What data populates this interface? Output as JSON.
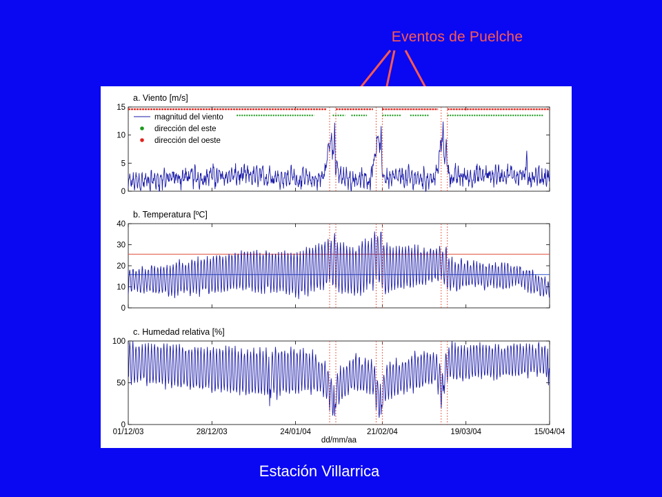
{
  "slide": {
    "annotation_title": "Eventos de Puelche",
    "station_title": "Estación Villarrica"
  },
  "colors": {
    "background": "#0A08F2",
    "annotation": "#FF5A4E",
    "series": "#1A1AA8",
    "east": "#1E9A1E",
    "west": "#E0251E",
    "event_line": "#E8513C",
    "temp_high": "#E04A3A",
    "temp_low": "#2A55C8"
  },
  "chart_data": {
    "type": "line",
    "x_type": "date",
    "x_range": [
      "2003-12-01",
      "2004-04-15"
    ],
    "x_ticks": [
      {
        "date": "2003-12-01",
        "label": "01/12/03"
      },
      {
        "date": "2003-12-28",
        "label": "28/12/03"
      },
      {
        "date": "2004-01-24",
        "label": "24/01/04"
      },
      {
        "date": "2004-02-21",
        "label": "21/02/04"
      },
      {
        "date": "2004-03-19",
        "label": "19/03/04"
      },
      {
        "date": "2004-04-15",
        "label": "15/04/04"
      }
    ],
    "xlabel": "dd/mm/aa",
    "puelche_events": [
      {
        "start": "2004-02-04",
        "end": "2004-02-06"
      },
      {
        "start": "2004-02-19",
        "end": "2004-02-21"
      },
      {
        "start": "2004-03-11",
        "end": "2004-03-13"
      }
    ],
    "panels": [
      {
        "id": "viento",
        "title": "a. Viento [m/s]",
        "ylim": [
          0,
          15
        ],
        "yticks": [
          0,
          5,
          10,
          15
        ],
        "legend": [
          "magnitud del viento",
          "dirección del este",
          "dirección del oeste"
        ],
        "series": [
          {
            "name": "magnitud del viento",
            "base": 1.6,
            "amp": 0.9,
            "noise": 1.6,
            "noise_scale": 0.08,
            "points": [
              [
                "2003-12-01",
                1.5
              ],
              [
                "2003-12-10",
                2.0
              ],
              [
                "2003-12-20",
                2.5
              ],
              [
                "2004-01-05",
                2.7
              ],
              [
                "2004-01-20",
                2.5
              ],
              [
                "2004-01-31",
                2.0
              ],
              [
                "2004-02-02",
                2.5
              ],
              [
                "2004-02-03",
                5.0
              ],
              [
                "2004-02-04",
                9.0
              ],
              [
                "2004-02-05",
                8.0
              ],
              [
                "2004-02-06",
                4.0
              ],
              [
                "2004-02-08",
                2.2
              ],
              [
                "2004-02-17",
                2.0
              ],
              [
                "2004-02-18",
                5.0
              ],
              [
                "2004-02-19",
                8.0
              ],
              [
                "2004-02-20",
                9.0
              ],
              [
                "2004-02-21",
                3.0
              ],
              [
                "2004-02-23",
                2.3
              ],
              [
                "2004-03-09",
                2.3
              ],
              [
                "2004-03-10",
                4.0
              ],
              [
                "2004-03-11",
                9.0
              ],
              [
                "2004-03-12",
                7.0
              ],
              [
                "2004-03-14",
                2.5
              ],
              [
                "2004-04-05",
                3.0
              ],
              [
                "2004-04-10",
                2.5
              ],
              [
                "2004-04-15",
                2.5
              ]
            ],
            "peaks": [
              [
                "2004-02-05",
                12.2
              ],
              [
                "2004-02-04",
                10.4
              ],
              [
                "2004-02-20",
                11.6
              ],
              [
                "2004-02-19",
                9.8
              ],
              [
                "2004-03-11",
                12.4
              ],
              [
                "2004-03-12",
                9.3
              ],
              [
                "2004-04-07",
                7.2
              ],
              [
                "2003-12-12",
                4.2
              ],
              [
                "2004-01-15",
                4.6
              ],
              [
                "2004-01-22",
                4.7
              ],
              [
                "2003-12-27",
                4.2
              ],
              [
                "2004-03-28",
                4.7
              ]
            ]
          }
        ],
        "direction_markers": {
          "east_y": 13.5,
          "west_y": 14.6,
          "west_segments": [
            [
              "2003-12-01",
              "2004-02-03"
            ],
            [
              "2004-02-06",
              "2004-02-18"
            ],
            [
              "2004-02-21",
              "2004-03-10"
            ],
            [
              "2004-03-13",
              "2004-04-15"
            ]
          ],
          "east_segments": [
            [
              "2003-12-06",
              "2003-12-09"
            ],
            [
              "2003-12-11",
              "2003-12-16"
            ],
            [
              "2003-12-17",
              "2003-12-19"
            ],
            [
              "2003-12-21",
              "2004-01-03"
            ],
            [
              "2004-01-05",
              "2004-01-30"
            ],
            [
              "2004-02-05",
              "2004-02-09"
            ],
            [
              "2004-02-11",
              "2004-02-16"
            ],
            [
              "2004-02-21",
              "2004-02-27"
            ],
            [
              "2004-03-01",
              "2004-03-07"
            ],
            [
              "2004-03-13",
              "2004-04-13"
            ]
          ]
        }
      },
      {
        "id": "temperatura",
        "title": "b. Temperatura [ºC]",
        "ylim": [
          0,
          40
        ],
        "yticks": [
          0,
          10,
          20,
          30,
          40
        ],
        "reference_lines": [
          {
            "y": 25.5,
            "color_key": "temp_high"
          },
          {
            "y": 15.8,
            "color_key": "temp_low"
          }
        ],
        "series": [
          {
            "name": "Temperatura",
            "base": 16,
            "amp": 8,
            "noise": 2.2,
            "noise_scale": 0.15,
            "points": [
              [
                "2003-12-01",
                13
              ],
              [
                "2003-12-15",
                13
              ],
              [
                "2003-12-25",
                15
              ],
              [
                "2004-01-10",
                18
              ],
              [
                "2004-01-25",
                16
              ],
              [
                "2004-02-04",
                22
              ],
              [
                "2004-02-06",
                20
              ],
              [
                "2004-02-12",
                17
              ],
              [
                "2004-02-20",
                24
              ],
              [
                "2004-02-22",
                18
              ],
              [
                "2004-03-11",
                21
              ],
              [
                "2004-03-14",
                16
              ],
              [
                "2004-04-05",
                15
              ],
              [
                "2004-04-14",
                10
              ],
              [
                "2004-04-15",
                8
              ]
            ],
            "amps": [
              [
                "2003-12-01",
                5
              ],
              [
                "2003-12-15",
                7
              ],
              [
                "2004-01-05",
                9
              ],
              [
                "2004-01-25",
                10
              ],
              [
                "2004-02-05",
                11
              ],
              [
                "2004-02-20",
                12
              ],
              [
                "2004-03-05",
                8
              ],
              [
                "2004-03-25",
                6
              ],
              [
                "2004-04-15",
                4
              ]
            ],
            "peaks": [
              [
                "2004-02-05",
                35.5
              ],
              [
                "2004-02-20",
                36
              ],
              [
                "2004-03-12",
                29
              ]
            ]
          }
        ]
      },
      {
        "id": "humedad",
        "title": "c. Humedad relativa [%]",
        "ylim": [
          0,
          100
        ],
        "yticks": [
          0,
          50,
          100
        ],
        "series": [
          {
            "name": "Humedad relativa",
            "base": 68,
            "amp": 26,
            "noise": 6,
            "noise_scale": 0.08,
            "points": [
              [
                "2003-12-01",
                75
              ],
              [
                "2003-12-20",
                68
              ],
              [
                "2004-01-10",
                62
              ],
              [
                "2004-01-30",
                64
              ],
              [
                "2004-02-03",
                50
              ],
              [
                "2004-02-05",
                30
              ],
              [
                "2004-02-07",
                45
              ],
              [
                "2004-02-12",
                64
              ],
              [
                "2004-02-18",
                55
              ],
              [
                "2004-02-20",
                28
              ],
              [
                "2004-02-22",
                50
              ],
              [
                "2004-03-09",
                70
              ],
              [
                "2004-03-11",
                45
              ],
              [
                "2004-03-13",
                74
              ],
              [
                "2004-04-15",
                78
              ]
            ],
            "amps": [
              [
                "2003-12-01",
                22
              ],
              [
                "2004-01-20",
                28
              ],
              [
                "2004-02-05",
                18
              ],
              [
                "2004-02-20",
                20
              ],
              [
                "2004-03-15",
                20
              ],
              [
                "2004-04-15",
                18
              ]
            ],
            "troughs": [
              [
                "2004-02-05",
                10
              ],
              [
                "2004-02-20",
                12
              ],
              [
                "2004-03-11",
                40
              ],
              [
                "2004-01-15",
                22
              ],
              [
                "2004-04-14",
                47
              ]
            ]
          }
        ]
      }
    ]
  }
}
